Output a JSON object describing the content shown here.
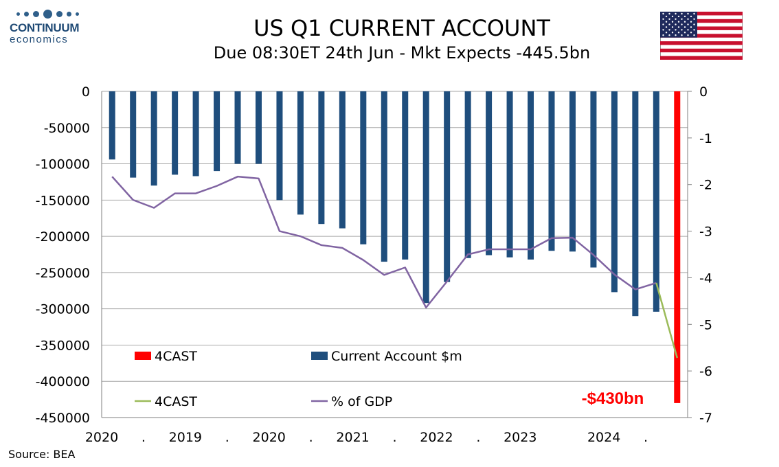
{
  "header": {
    "logo_name": "CONTINUUM",
    "logo_sub": "economics",
    "title": "US Q1 CURRENT ACCOUNT",
    "subtitle": "Due 08:30ET  24th Jun - Mkt Expects -445.5bn"
  },
  "footer": {
    "source": "Source: BEA"
  },
  "colors": {
    "current_account_bar": "#1f4e7d",
    "forecast_bar": "#ff0000",
    "gdp_line": "#8064a2",
    "forecast_line": "#9bbb59",
    "annotation": "#ff0000"
  },
  "chart_data": {
    "type": "bar",
    "x_tick_labels": [
      "2020",
      ".",
      "2019",
      ".",
      "2020",
      ".",
      "2021",
      ".",
      "2022",
      ".",
      "2023",
      "",
      "2024",
      "."
    ],
    "y_left": {
      "ylim": [
        -450000,
        0
      ],
      "ticks": [
        0,
        -50000,
        -100000,
        -150000,
        -200000,
        -250000,
        -300000,
        -350000,
        -400000,
        -450000
      ]
    },
    "y_right": {
      "ylim": [
        -7,
        0
      ],
      "ticks": [
        0,
        -1,
        -2,
        -3,
        -4,
        -5,
        -6,
        -7
      ]
    },
    "series": [
      {
        "name": "Current Account $m",
        "type": "bar",
        "axis": "left",
        "values": [
          -94000,
          -119000,
          -130000,
          -115000,
          -117000,
          -110000,
          -100000,
          -100000,
          -150000,
          -170000,
          -183000,
          -189000,
          -211000,
          -235000,
          -232000,
          -292000,
          -263000,
          -230000,
          -226000,
          -229000,
          -232000,
          -220000,
          -221000,
          -243000,
          -277000,
          -310000,
          -304000,
          null
        ]
      },
      {
        "name": "4CAST",
        "type": "bar",
        "axis": "left",
        "values": [
          null,
          null,
          null,
          null,
          null,
          null,
          null,
          null,
          null,
          null,
          null,
          null,
          null,
          null,
          null,
          null,
          null,
          null,
          null,
          null,
          null,
          null,
          null,
          null,
          null,
          null,
          null,
          -430000
        ]
      },
      {
        "name": "% of GDP",
        "type": "line",
        "axis": "right",
        "values": [
          -1.83,
          -2.33,
          -2.5,
          -2.19,
          -2.19,
          -2.03,
          -1.83,
          -1.87,
          -3.0,
          -3.11,
          -3.3,
          -3.36,
          -3.62,
          -3.94,
          -3.78,
          -4.64,
          -4.08,
          -3.5,
          -3.39,
          -3.39,
          -3.39,
          -3.15,
          -3.14,
          -3.51,
          -3.93,
          -4.25,
          -4.11,
          null
        ]
      },
      {
        "name": "4CAST",
        "type": "line",
        "axis": "right",
        "values": [
          null,
          null,
          null,
          null,
          null,
          null,
          null,
          null,
          null,
          null,
          null,
          null,
          null,
          null,
          null,
          null,
          null,
          null,
          null,
          null,
          null,
          null,
          null,
          null,
          null,
          null,
          -4.11,
          -5.72
        ]
      }
    ],
    "annotations": [
      {
        "text": "-$430bn"
      }
    ],
    "legend_placement": "inside bottom-left",
    "grid": true
  }
}
